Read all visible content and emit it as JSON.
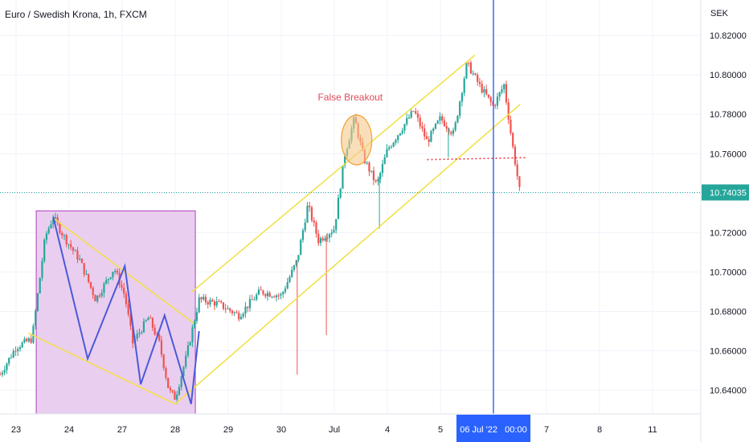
{
  "header": {
    "title": "Euro / Swedish Krona, 1h, FXCM"
  },
  "colors": {
    "up": "#26a69a",
    "down": "#ef5350",
    "channel": "#f2e04a",
    "pattern": "#4a5ad8",
    "box_fill": "#e6c6ec",
    "box_stroke": "#b040c0",
    "cursor": "#2962ff",
    "price_badge": "#26a69a",
    "circle_fill": "#f5c98a",
    "circle_stroke": "#f0a030",
    "annotation": "#e04a5a",
    "support": "#f03b4c",
    "grid": "#f0f3fa"
  },
  "chart_data": {
    "type": "candlestick",
    "title": "Euro / Swedish Krona, 1h, FXCM",
    "currency_label": "SEK",
    "ylim": [
      10.628,
      10.838
    ],
    "y_ticks": [
      "10.64000",
      "10.66000",
      "10.68000",
      "10.70000",
      "10.72000",
      "10.74000",
      "10.76000",
      "10.78000",
      "10.80000",
      "10.82000"
    ],
    "x_ticks": [
      {
        "label": "23",
        "pos": 0.0
      },
      {
        "label": "24",
        "pos": 1.0
      },
      {
        "label": "27",
        "pos": 2.0
      },
      {
        "label": "28",
        "pos": 3.0
      },
      {
        "label": "29",
        "pos": 4.0
      },
      {
        "label": "30",
        "pos": 5.0
      },
      {
        "label": "Jul",
        "pos": 6.0
      },
      {
        "label": "4",
        "pos": 7.0
      },
      {
        "label": "5",
        "pos": 8.0
      },
      {
        "label": "7",
        "pos": 10.0
      },
      {
        "label": "8",
        "pos": 11.0
      },
      {
        "label": "11",
        "pos": 12.0
      }
    ],
    "last_price": "10.74035",
    "last_price_value": 10.74035,
    "cursor": {
      "label": "06 Jul '22   00:00",
      "pos": 9.0
    },
    "key_points": [
      {
        "t": -0.3,
        "p": 10.648
      },
      {
        "t": 0.0,
        "p": 10.662
      },
      {
        "t": 0.3,
        "p": 10.666
      },
      {
        "t": 0.55,
        "p": 10.718
      },
      {
        "t": 0.7,
        "p": 10.728
      },
      {
        "t": 0.9,
        "p": 10.718
      },
      {
        "t": 1.2,
        "p": 10.706
      },
      {
        "t": 1.5,
        "p": 10.686
      },
      {
        "t": 1.85,
        "p": 10.702
      },
      {
        "t": 2.05,
        "p": 10.688
      },
      {
        "t": 2.2,
        "p": 10.664
      },
      {
        "t": 2.5,
        "p": 10.677
      },
      {
        "t": 2.7,
        "p": 10.664
      },
      {
        "t": 2.88,
        "p": 10.64
      },
      {
        "t": 3.0,
        "p": 10.636
      },
      {
        "t": 3.2,
        "p": 10.656
      },
      {
        "t": 3.45,
        "p": 10.686
      },
      {
        "t": 3.8,
        "p": 10.684
      },
      {
        "t": 4.2,
        "p": 10.678
      },
      {
        "t": 4.6,
        "p": 10.69
      },
      {
        "t": 5.0,
        "p": 10.688
      },
      {
        "t": 5.3,
        "p": 10.706
      },
      {
        "t": 5.5,
        "p": 10.734
      },
      {
        "t": 5.7,
        "p": 10.716
      },
      {
        "t": 6.0,
        "p": 10.722
      },
      {
        "t": 6.2,
        "p": 10.76
      },
      {
        "t": 6.38,
        "p": 10.778
      },
      {
        "t": 6.55,
        "p": 10.758
      },
      {
        "t": 6.8,
        "p": 10.744
      },
      {
        "t": 7.0,
        "p": 10.762
      },
      {
        "t": 7.2,
        "p": 10.77
      },
      {
        "t": 7.5,
        "p": 10.782
      },
      {
        "t": 7.75,
        "p": 10.766
      },
      {
        "t": 8.0,
        "p": 10.778
      },
      {
        "t": 8.25,
        "p": 10.77
      },
      {
        "t": 8.5,
        "p": 10.806
      },
      {
        "t": 8.75,
        "p": 10.794
      },
      {
        "t": 9.0,
        "p": 10.784
      },
      {
        "t": 9.2,
        "p": 10.795
      },
      {
        "t": 9.35,
        "p": 10.766
      },
      {
        "t": 9.5,
        "p": 10.74
      }
    ],
    "annotations": {
      "false_breakout_label": "False Breakout"
    }
  }
}
